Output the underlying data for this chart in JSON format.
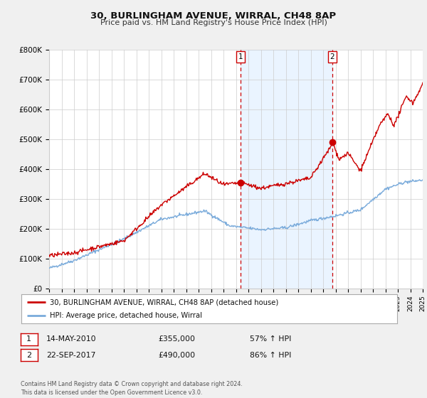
{
  "title": "30, BURLINGHAM AVENUE, WIRRAL, CH48 8AP",
  "subtitle": "Price paid vs. HM Land Registry's House Price Index (HPI)",
  "bg_color": "#f0f0f0",
  "plot_bg_color": "#ffffff",
  "grid_color": "#cccccc",
  "red_color": "#cc0000",
  "blue_color": "#7aabdb",
  "highlight_bg": "#ddeeff",
  "ylim": [
    0,
    800000
  ],
  "yticks": [
    0,
    100000,
    200000,
    300000,
    400000,
    500000,
    600000,
    700000,
    800000
  ],
  "ytick_labels": [
    "£0",
    "£100K",
    "£200K",
    "£300K",
    "£400K",
    "£500K",
    "£600K",
    "£700K",
    "£800K"
  ],
  "event1_date": 2010.37,
  "event1_label": "1",
  "event1_price": 355000,
  "event1_text": "14-MAY-2010",
  "event1_amount": "£355,000",
  "event1_pct": "57% ↑ HPI",
  "event2_date": 2017.73,
  "event2_label": "2",
  "event2_price": 490000,
  "event2_text": "22-SEP-2017",
  "event2_amount": "£490,000",
  "event2_pct": "86% ↑ HPI",
  "legend_line1": "30, BURLINGHAM AVENUE, WIRRAL, CH48 8AP (detached house)",
  "legend_line2": "HPI: Average price, detached house, Wirral",
  "footer": "Contains HM Land Registry data © Crown copyright and database right 2024.\nThis data is licensed under the Open Government Licence v3.0.",
  "xmin": 1995,
  "xmax": 2025
}
